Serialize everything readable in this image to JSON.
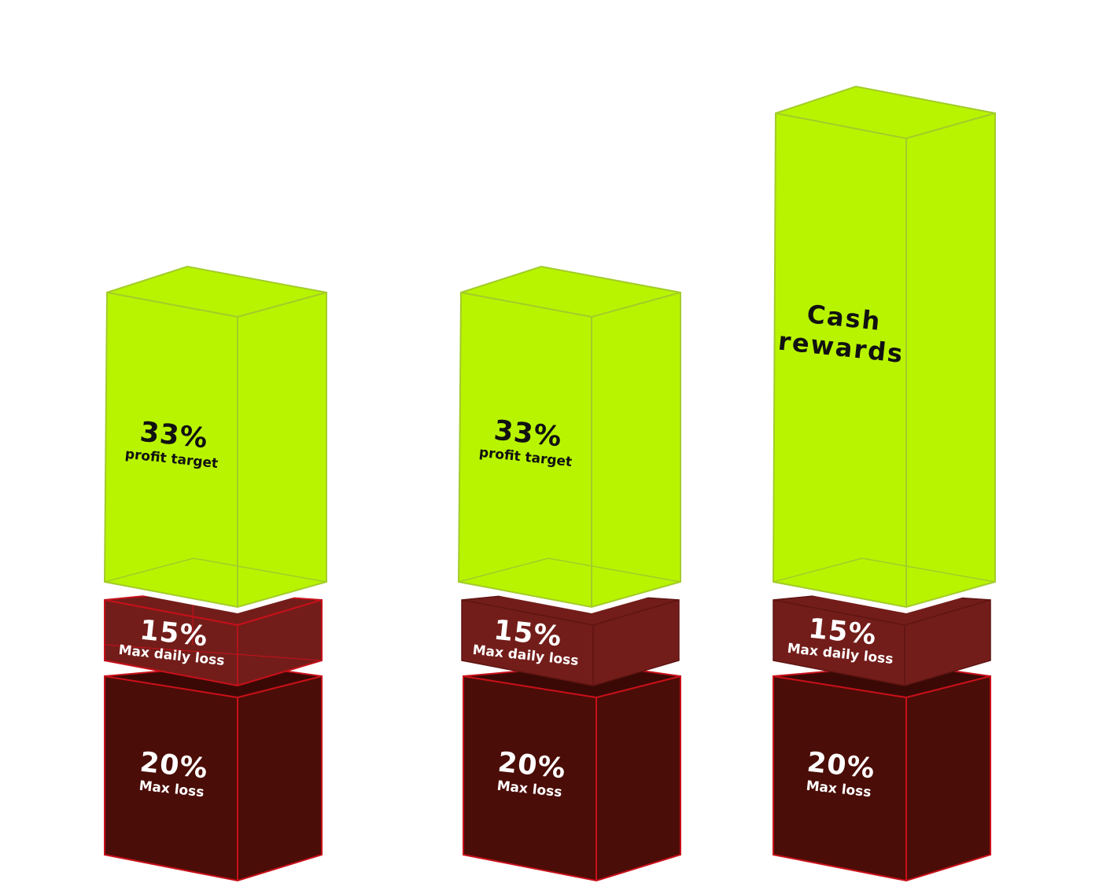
{
  "columns": [
    {
      "top": {
        "value": "33%",
        "label": "profit target"
      },
      "middle": {
        "value": "15%",
        "label": "Max daily loss"
      },
      "bottom": {
        "value": "20%",
        "label": "Max loss"
      }
    },
    {
      "top": {
        "value": "33%",
        "label": "profit target"
      },
      "middle": {
        "value": "15%",
        "label": "Max daily loss"
      },
      "bottom": {
        "value": "20%",
        "label": "Max loss"
      }
    },
    {
      "top": {
        "line1": "Cash",
        "line2": "rewards"
      },
      "middle": {
        "value": "15%",
        "label": "Max daily loss"
      },
      "bottom": {
        "value": "20%",
        "label": "Max loss"
      }
    }
  ],
  "colors": {
    "green": "#b8f400",
    "green_edge": "#a3cc2a",
    "red_middle": "#731d1a",
    "red_bottom": "#4b0d07",
    "red_edge": "#c8101a",
    "text_dark": "#111111",
    "text_light": "#ffffff"
  }
}
